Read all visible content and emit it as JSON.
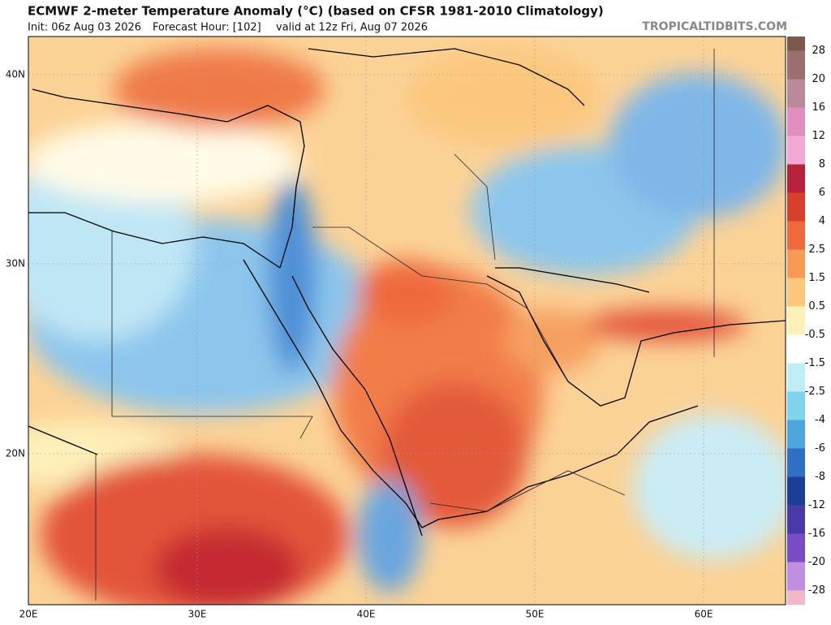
{
  "header": {
    "title": "ECMWF 2-meter Temperature Anomaly (°C) (based on CFSR 1981-2010 Climatology)",
    "init": "Init: 06z Aug 03 2026",
    "forecast_hour": "Forecast Hour: [102]",
    "valid": "valid at 12z Fri, Aug 07 2026",
    "source": "TROPICALTIDBITS.COM"
  },
  "map": {
    "lat_labels": [
      "40N",
      "30N",
      "20N"
    ],
    "lon_labels": [
      "20E",
      "30E",
      "40E",
      "50E",
      "60E"
    ]
  },
  "colorbar": {
    "labels": [
      28,
      20,
      16,
      12,
      8,
      6,
      4,
      2.5,
      1.5,
      0.5,
      -0.5,
      -1.5,
      -2.5,
      -4,
      -6,
      -8,
      -12,
      -16,
      -20,
      -28
    ],
    "colors": [
      "#7a5a4a",
      "#9c6d6d",
      "#b98b9a",
      "#e08fbf",
      "#f2a8d2",
      "#b8223a",
      "#d8402e",
      "#ee6a3c",
      "#f69a55",
      "#fbc77e",
      "#fdf0b8",
      "#ffffff",
      "#bfeef5",
      "#7fd3ea",
      "#4ea6de",
      "#2f6fc4",
      "#1d3e98",
      "#4a3aa8",
      "#7a4cc4",
      "#c18ee0",
      "#f2b8c8"
    ]
  }
}
